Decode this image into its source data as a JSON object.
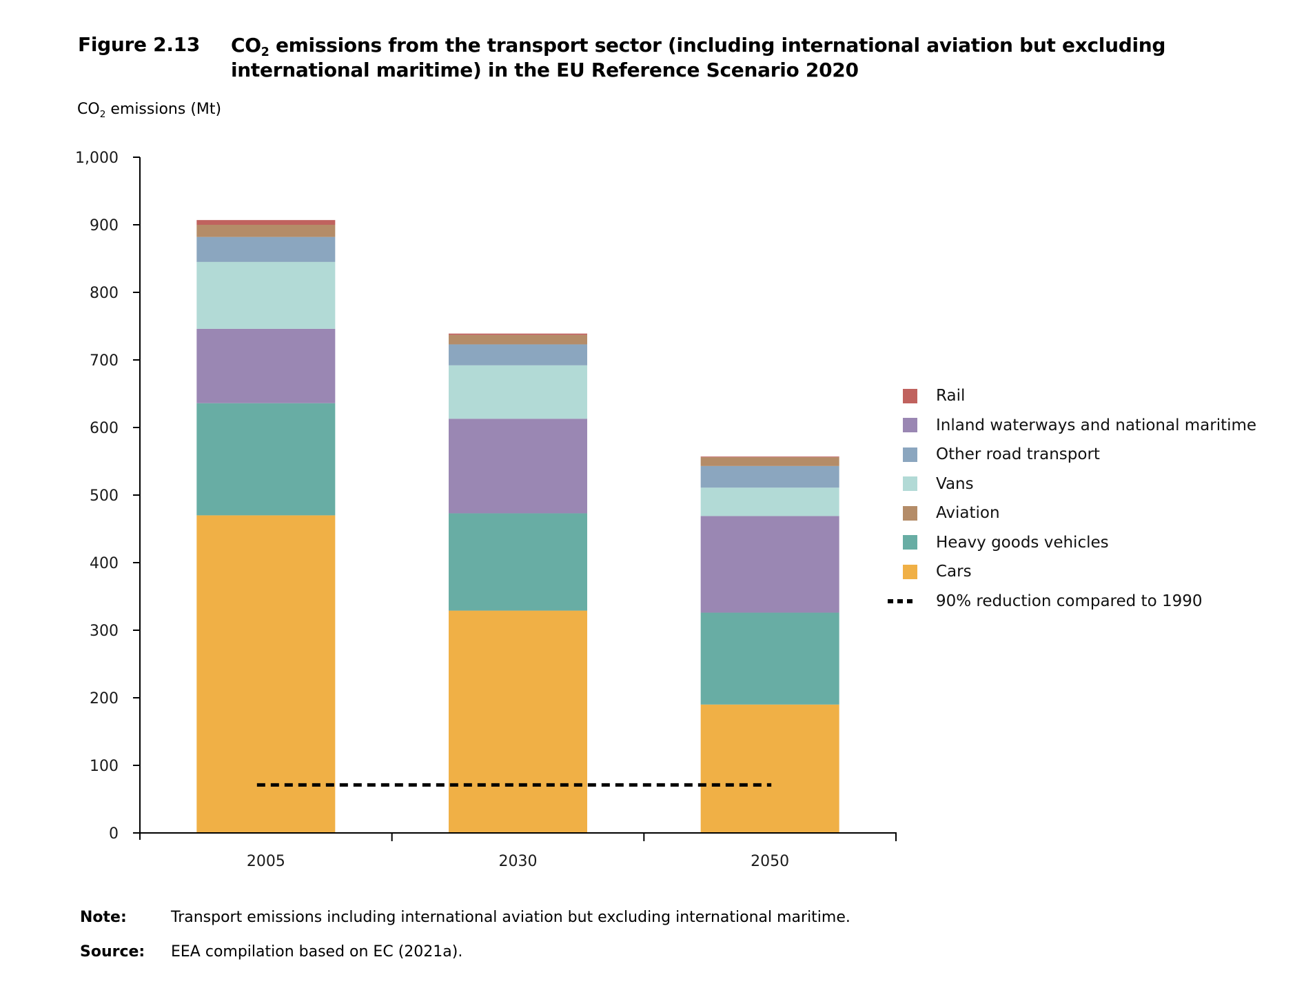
{
  "figure": {
    "label": "Figure 2.13",
    "title_line1_pre": "CO",
    "title_line1_sub": "2",
    "title_line1_post": " emissions from the transport sector (including international aviation but excluding",
    "title_line2": "international maritime) in the EU Reference Scenario 2020"
  },
  "y_axis_title": {
    "pre": "CO",
    "sub": "2",
    "post": " emissions (Mt)"
  },
  "chart_data": {
    "type": "bar",
    "stacked": true,
    "title": "CO2 emissions from the transport sector (including international aviation but excluding international maritime) in the EU Reference Scenario 2020",
    "xlabel": "",
    "ylabel": "CO2 emissions (Mt)",
    "ylim": [
      0,
      1000
    ],
    "yticks": [
      0,
      100,
      200,
      300,
      400,
      500,
      600,
      700,
      800,
      900,
      1000
    ],
    "ytick_labels": [
      "0",
      "100",
      "200",
      "300",
      "400",
      "500",
      "600",
      "700",
      "800",
      "900",
      "1,000"
    ],
    "categories": [
      "2005",
      "2030",
      "2050"
    ],
    "grid": false,
    "legend_position": "right",
    "series": [
      {
        "name": "Cars",
        "color": "#f0b046",
        "values": [
          470,
          329,
          190
        ]
      },
      {
        "name": "Heavy goods vehicles",
        "color": "#68ada4",
        "values": [
          166,
          144,
          136
        ]
      },
      {
        "name": "Inland waterways and national maritime",
        "color": "#9a87b3",
        "values": [
          110,
          140,
          143
        ]
      },
      {
        "name": "Vans",
        "color": "#b2dad6",
        "values": [
          99,
          79,
          42
        ]
      },
      {
        "name": "Other road transport",
        "color": "#8ba6bf",
        "values": [
          37,
          31,
          32
        ]
      },
      {
        "name": "Aviation",
        "color": "#b48c68",
        "values": [
          18,
          14,
          13
        ]
      },
      {
        "name": "Rail",
        "color": "#c0625e",
        "values": [
          7,
          2,
          1
        ]
      }
    ],
    "reference_line": {
      "name": "90% reduction compared to 1990",
      "value": 71,
      "style": "dotted",
      "color": "#000000",
      "from_category": "2005",
      "to_category": "2050"
    }
  },
  "legend": {
    "items": [
      {
        "label": "Rail",
        "color": "#c0625e",
        "kind": "swatch"
      },
      {
        "label": "Inland waterways and national maritime",
        "color": "#9a87b3",
        "kind": "swatch"
      },
      {
        "label": "Other road transport",
        "color": "#8ba6bf",
        "kind": "swatch"
      },
      {
        "label": "Vans",
        "color": "#b2dad6",
        "kind": "swatch"
      },
      {
        "label": "Aviation",
        "color": "#b48c68",
        "kind": "swatch"
      },
      {
        "label": "Heavy goods vehicles",
        "color": "#68ada4",
        "kind": "swatch"
      },
      {
        "label": "Cars",
        "color": "#f0b046",
        "kind": "swatch"
      },
      {
        "label": "90% reduction compared to 1990",
        "color": "#000000",
        "kind": "dash"
      }
    ]
  },
  "notes": {
    "note_label": "Note:",
    "note_text": "Transport emissions including international aviation but excluding international maritime.",
    "source_label": "Source:",
    "source_text": "EEA compilation based on EC (2021a)."
  }
}
